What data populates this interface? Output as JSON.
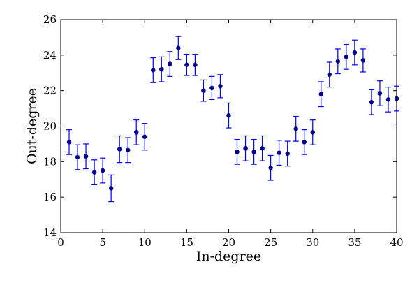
{
  "chart_data": {
    "type": "scatter",
    "title": "",
    "xlabel": "In-degree",
    "ylabel": "Out-degree",
    "xlim": [
      0,
      40
    ],
    "ylim": [
      14,
      26
    ],
    "xticks": [
      0,
      5,
      10,
      15,
      20,
      25,
      30,
      35,
      40
    ],
    "yticks": [
      14,
      16,
      18,
      20,
      22,
      24,
      26
    ],
    "xtick_labels": [
      "0",
      "5",
      "10",
      "15",
      "20",
      "25",
      "30",
      "35",
      "40"
    ],
    "ytick_labels": [
      "14",
      "16",
      "18",
      "20",
      "22",
      "24",
      "26"
    ],
    "grid": false,
    "legend": "none",
    "marker_color": "#00008b",
    "errorbar_color": "#0000ff",
    "series": [
      {
        "x": [
          1,
          2,
          3,
          4,
          5,
          6,
          7,
          8,
          9,
          10,
          11,
          12,
          13,
          14,
          15,
          16,
          17,
          18,
          19,
          20,
          21,
          22,
          23,
          24,
          25,
          26,
          27,
          28,
          29,
          30,
          31,
          32,
          33,
          34,
          35,
          36,
          37,
          38,
          39,
          40
        ],
        "y": [
          19.1,
          18.25,
          18.3,
          17.4,
          17.5,
          16.5,
          18.7,
          18.65,
          19.65,
          19.4,
          23.15,
          23.2,
          23.5,
          24.4,
          23.45,
          23.45,
          22.0,
          22.15,
          22.25,
          20.6,
          18.55,
          18.75,
          18.55,
          18.75,
          17.65,
          18.5,
          18.45,
          19.85,
          19.1,
          19.65,
          21.8,
          22.9,
          23.65,
          23.9,
          24.15,
          23.7,
          21.35,
          21.85,
          21.5,
          21.55
        ],
        "yerr": [
          0.7,
          0.7,
          0.7,
          0.7,
          0.7,
          0.75,
          0.75,
          0.7,
          0.7,
          0.75,
          0.7,
          0.7,
          0.7,
          0.65,
          0.6,
          0.6,
          0.6,
          0.65,
          0.65,
          0.7,
          0.7,
          0.7,
          0.7,
          0.7,
          0.7,
          0.7,
          0.7,
          0.7,
          0.7,
          0.7,
          0.7,
          0.7,
          0.7,
          0.7,
          0.7,
          0.65,
          0.7,
          0.7,
          0.7,
          0.7
        ]
      }
    ]
  }
}
